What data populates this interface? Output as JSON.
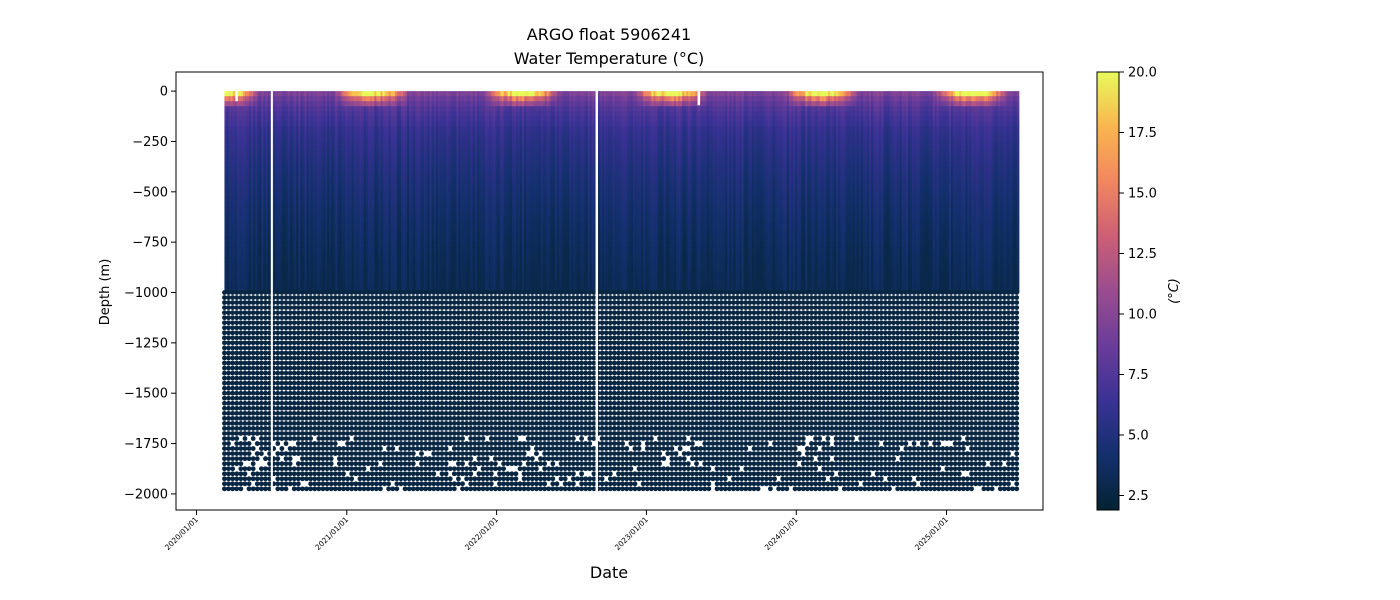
{
  "chart_data": {
    "type": "scatter",
    "title": "ARGO float 5906241",
    "subtitle": "Water Temperature (°C)",
    "xlabel": "Date",
    "ylabel": "Depth (m)",
    "x_tick_labels": [
      "2020/01/01",
      "2021/01/01",
      "2022/01/01",
      "2023/01/01",
      "2024/01/01",
      "2025/01/01"
    ],
    "y_ticks": [
      0,
      -250,
      -500,
      -750,
      -1000,
      -1250,
      -1500,
      -1750,
      -2000
    ],
    "ylim": [
      -2080,
      95
    ],
    "xlim": [
      "2019/11/12",
      "2025/08/24"
    ],
    "data_range": {
      "start": "2020/03/09",
      "end": "2025/06/25"
    },
    "profile_interval_days": 5,
    "shallow_depth_m": -1000,
    "deep_levels_m": [
      -1000,
      -1025,
      -1050,
      -1075,
      -1100,
      -1125,
      -1150,
      -1175,
      -1200,
      -1225,
      -1250,
      -1275,
      -1300,
      -1325,
      -1350,
      -1375,
      -1400,
      -1425,
      -1450,
      -1475,
      -1500,
      -1525,
      -1550,
      -1575,
      -1600,
      -1625,
      -1650,
      -1675,
      -1700,
      -1725,
      -1750,
      -1775,
      -1800,
      -1825,
      -1850,
      -1875,
      -1900,
      -1925,
      -1950,
      -1975
    ],
    "deep_temperature_c": 2.5,
    "gaps": [
      {
        "start": "2020/06/30",
        "end": "2020/07/05",
        "depth_m": -1990
      },
      {
        "start": "2022/08/30",
        "end": "2022/09/05",
        "depth_m": -2000
      }
    ],
    "partial_dropouts": [
      {
        "date": "2020/04/07",
        "to_depth_m": -50
      },
      {
        "date": "2023/05/08",
        "to_depth_m": -70
      }
    ],
    "colorbar": {
      "label": "(°C)",
      "min": 1.9,
      "max": 20.0,
      "ticks": [
        2.5,
        5.0,
        7.5,
        10.0,
        12.5,
        15.0,
        17.5,
        20.0
      ],
      "colormap": "thermal",
      "colors": [
        "#042333",
        "#13306d",
        "#3a3295",
        "#6a3c9a",
        "#9a4c8f",
        "#cd5f75",
        "#f28660",
        "#f9b54e",
        "#e8fa5b"
      ]
    }
  }
}
